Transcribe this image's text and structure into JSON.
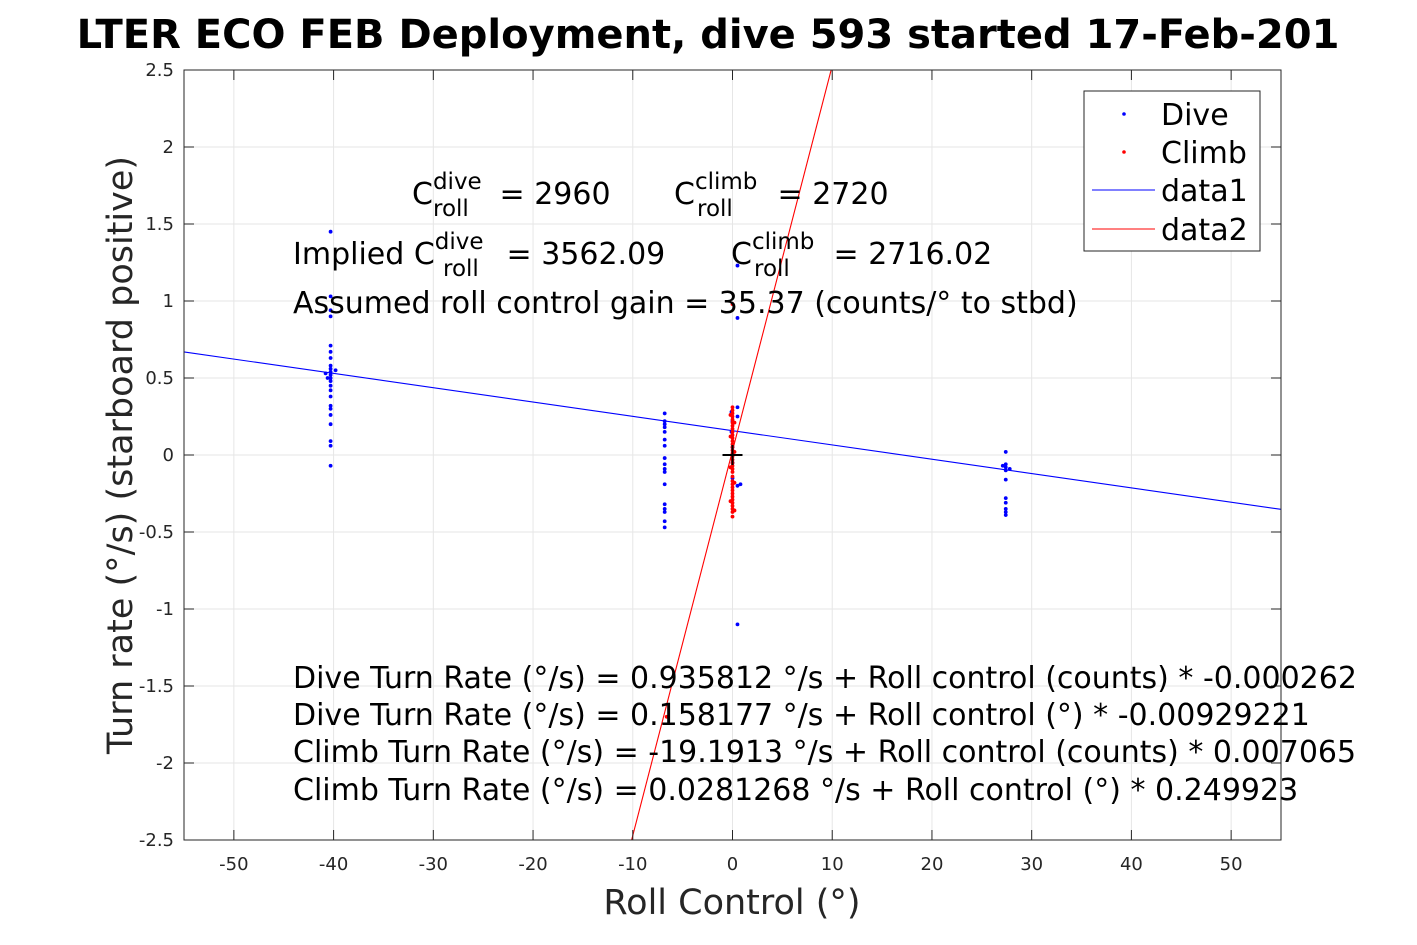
{
  "chart_data": {
    "type": "scatter",
    "title": "LTER ECO FEB Deployment, dive 593 started 17-Feb-201",
    "xlabel": "Roll Control (°)",
    "ylabel": "Turn rate (°/s) (starboard positive)",
    "xlim": [
      -55,
      55
    ],
    "ylim": [
      -2.5,
      2.5
    ],
    "xticks": [
      -50,
      -40,
      -30,
      -20,
      -10,
      0,
      10,
      20,
      30,
      40,
      50
    ],
    "yticks": [
      -2.5,
      -2,
      -1.5,
      -1,
      -0.5,
      0,
      0.5,
      1,
      1.5,
      2,
      2.5
    ],
    "xtick_labels": [
      "-50",
      "-40",
      "-30",
      "-20",
      "-10",
      "0",
      "10",
      "20",
      "30",
      "40",
      "50"
    ],
    "ytick_labels": [
      "-2.5",
      "-2",
      "-1.5",
      "-1",
      "-0.5",
      "0",
      "0.5",
      "1",
      "1.5",
      "2",
      "2.5"
    ],
    "grid": true,
    "legend_position": "top-right",
    "series": [
      {
        "name": "Dive",
        "kind": "points",
        "color": "#0000ff",
        "points": [
          [
            -40.3,
            1.45
          ],
          [
            -40.3,
            1.03
          ],
          [
            -40.3,
            0.94
          ],
          [
            -40.3,
            0.9
          ],
          [
            -40.3,
            0.71
          ],
          [
            -40.3,
            0.67
          ],
          [
            -40.3,
            0.63
          ],
          [
            -40.3,
            0.58
          ],
          [
            -40.3,
            0.56
          ],
          [
            -40.3,
            0.54
          ],
          [
            -40.3,
            0.52
          ],
          [
            -40.3,
            0.5
          ],
          [
            -40.3,
            0.48
          ],
          [
            -40.3,
            0.45
          ],
          [
            -40.3,
            0.42
          ],
          [
            -40.3,
            0.38
          ],
          [
            -40.3,
            0.32
          ],
          [
            -40.3,
            0.3
          ],
          [
            -40.3,
            0.26
          ],
          [
            -40.3,
            0.2
          ],
          [
            -40.3,
            0.09
          ],
          [
            -40.3,
            0.06
          ],
          [
            -40.3,
            -0.07
          ],
          [
            -40.8,
            0.53
          ],
          [
            -39.8,
            0.55
          ],
          [
            -40.6,
            0.5
          ],
          [
            -6.8,
            0.27
          ],
          [
            -6.8,
            0.22
          ],
          [
            -6.8,
            0.2
          ],
          [
            -6.8,
            0.18
          ],
          [
            -6.8,
            0.15
          ],
          [
            -6.8,
            0.1
          ],
          [
            -6.8,
            0.06
          ],
          [
            -6.8,
            -0.02
          ],
          [
            -6.8,
            -0.06
          ],
          [
            -6.8,
            -0.09
          ],
          [
            -6.8,
            -0.11
          ],
          [
            -6.8,
            -0.19
          ],
          [
            -6.8,
            -0.32
          ],
          [
            -6.8,
            -0.35
          ],
          [
            -6.8,
            -0.37
          ],
          [
            -6.8,
            -0.43
          ],
          [
            -6.8,
            -0.47
          ],
          [
            -0.1,
            0.28
          ],
          [
            0.0,
            0.22
          ],
          [
            -0.1,
            0.15
          ],
          [
            0.0,
            0.05
          ],
          [
            0.0,
            -0.05
          ],
          [
            0.0,
            -0.15
          ],
          [
            0.5,
            0.31
          ],
          [
            0.5,
            0.25
          ],
          [
            0.5,
            1.23
          ],
          [
            0.5,
            0.89
          ],
          [
            0.5,
            -0.2
          ],
          [
            0.8,
            -0.19
          ],
          [
            0.5,
            -1.1
          ],
          [
            27.4,
            0.02
          ],
          [
            27.4,
            -0.06
          ],
          [
            27.4,
            -0.08
          ],
          [
            27.4,
            -0.1
          ],
          [
            27.4,
            -0.16
          ],
          [
            27.4,
            -0.28
          ],
          [
            27.4,
            -0.31
          ],
          [
            27.4,
            -0.35
          ],
          [
            27.4,
            -0.37
          ],
          [
            27.4,
            -0.39
          ],
          [
            27.1,
            -0.07
          ],
          [
            27.8,
            -0.09
          ]
        ]
      },
      {
        "name": "Climb",
        "kind": "points",
        "color": "#ff0000",
        "points": [
          [
            0.0,
            0.31
          ],
          [
            0.0,
            0.29
          ],
          [
            0.0,
            0.27
          ],
          [
            0.0,
            0.25
          ],
          [
            0.0,
            0.23
          ],
          [
            0.0,
            0.21
          ],
          [
            0.0,
            0.19
          ],
          [
            0.0,
            0.17
          ],
          [
            0.0,
            0.15
          ],
          [
            0.0,
            0.13
          ],
          [
            0.0,
            0.11
          ],
          [
            0.0,
            0.09
          ],
          [
            0.0,
            0.07
          ],
          [
            0.0,
            0.05
          ],
          [
            0.0,
            0.03
          ],
          [
            0.0,
            0.01
          ],
          [
            0.0,
            -0.01
          ],
          [
            0.0,
            -0.03
          ],
          [
            0.0,
            -0.05
          ],
          [
            0.0,
            -0.07
          ],
          [
            0.0,
            -0.09
          ],
          [
            0.0,
            -0.11
          ],
          [
            0.0,
            -0.14
          ],
          [
            0.0,
            -0.17
          ],
          [
            0.0,
            -0.19
          ],
          [
            0.0,
            -0.21
          ],
          [
            0.0,
            -0.23
          ],
          [
            0.0,
            -0.25
          ],
          [
            0.0,
            -0.27
          ],
          [
            0.0,
            -0.29
          ],
          [
            0.0,
            -0.31
          ],
          [
            0.0,
            -0.33
          ],
          [
            0.0,
            -0.35
          ],
          [
            0.0,
            -0.37
          ],
          [
            0.0,
            -0.4
          ],
          [
            -0.2,
            0.26
          ],
          [
            0.2,
            0.21
          ],
          [
            -0.2,
            0.12
          ],
          [
            0.2,
            0.02
          ],
          [
            -0.2,
            -0.08
          ],
          [
            0.2,
            -0.18
          ],
          [
            -0.2,
            -0.3
          ],
          [
            0.2,
            -0.36
          ],
          [
            0.0,
            0.98
          ],
          [
            -6.6,
            -1.7
          ]
        ]
      },
      {
        "name": "data1",
        "kind": "line",
        "color": "#0000ff",
        "intercept": 0.158177,
        "slope": -0.00929221
      },
      {
        "name": "data2",
        "kind": "line",
        "color": "#ff0000",
        "intercept": 0.0281268,
        "slope": 0.249923
      }
    ],
    "marker": {
      "x": 0,
      "y": 0,
      "color": "#000000"
    },
    "annotations": {
      "c_dive_main": "C",
      "c_dive_sup": "dive",
      "c_dive_sub": "roll",
      "c_dive_val": " = 2960",
      "c_climb_main": "C",
      "c_climb_sup": "climb",
      "c_climb_sub": "roll",
      "c_climb_val": " = 2720",
      "implied_prefix": "Implied C",
      "implied_dive_sup": "dive",
      "implied_dive_sub": "roll",
      "implied_dive_val": " = 3562.09",
      "implied_climb_main": "C",
      "implied_climb_sup": "climb",
      "implied_climb_sub": "roll",
      "implied_climb_val": " = 2716.02",
      "gain": "Assumed roll control gain = 35.37 (counts/° to stbd)",
      "eq1": "Dive Turn Rate (°/s) = 0.935812 °/s + Roll control (counts) * -0.000262",
      "eq2": "Dive Turn Rate (°/s) = 0.158177 °/s + Roll control (°) * -0.00929221",
      "eq3": "Climb Turn Rate (°/s) = -19.1913 °/s + Roll control (counts) * 0.007065",
      "eq4": "Climb Turn Rate (°/s) = 0.0281268 °/s + Roll control (°) * 0.249923"
    }
  }
}
